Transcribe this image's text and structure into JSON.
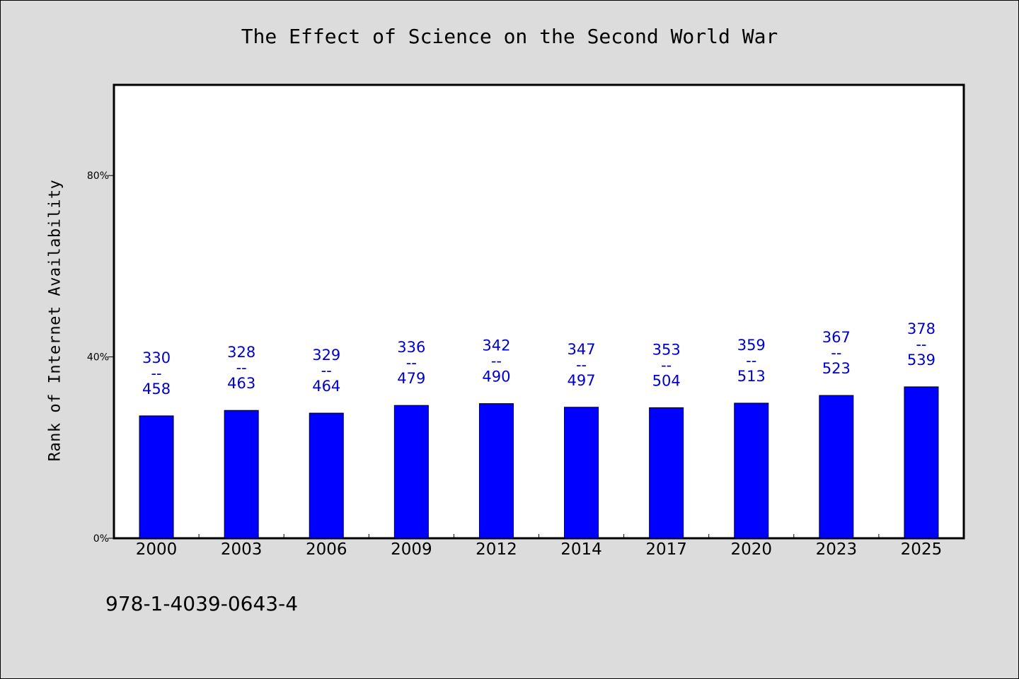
{
  "colors": {
    "background": "#dcdcdc",
    "plot_background": "#ffffff",
    "bar": "#0000ff",
    "data_label": "#0000cc",
    "text": "#000000"
  },
  "footer": {
    "isbn": "978-1-4039-0643-4"
  },
  "chart_data": {
    "type": "bar",
    "title": "The Effect of Science on the Second World War",
    "xlabel": "",
    "ylabel": "Rank of Internet Availability",
    "ylim": [
      0,
      100
    ],
    "yticks": [
      0,
      40,
      80
    ],
    "ytick_labels": [
      "0%",
      "40%",
      "80%"
    ],
    "grid": false,
    "categories": [
      "2000",
      "2003",
      "2006",
      "2009",
      "2012",
      "2014",
      "2017",
      "2020",
      "2023",
      "2025"
    ],
    "values": [
      27,
      28.2,
      27.6,
      29.3,
      29.7,
      28.9,
      28.8,
      29.8,
      31.5,
      33.4
    ],
    "label_separator": "--",
    "labels_top": [
      "330",
      "328",
      "329",
      "336",
      "342",
      "347",
      "353",
      "359",
      "367",
      "378"
    ],
    "labels_bottom": [
      "458",
      "463",
      "464",
      "479",
      "490",
      "497",
      "504",
      "513",
      "523",
      "539"
    ]
  }
}
